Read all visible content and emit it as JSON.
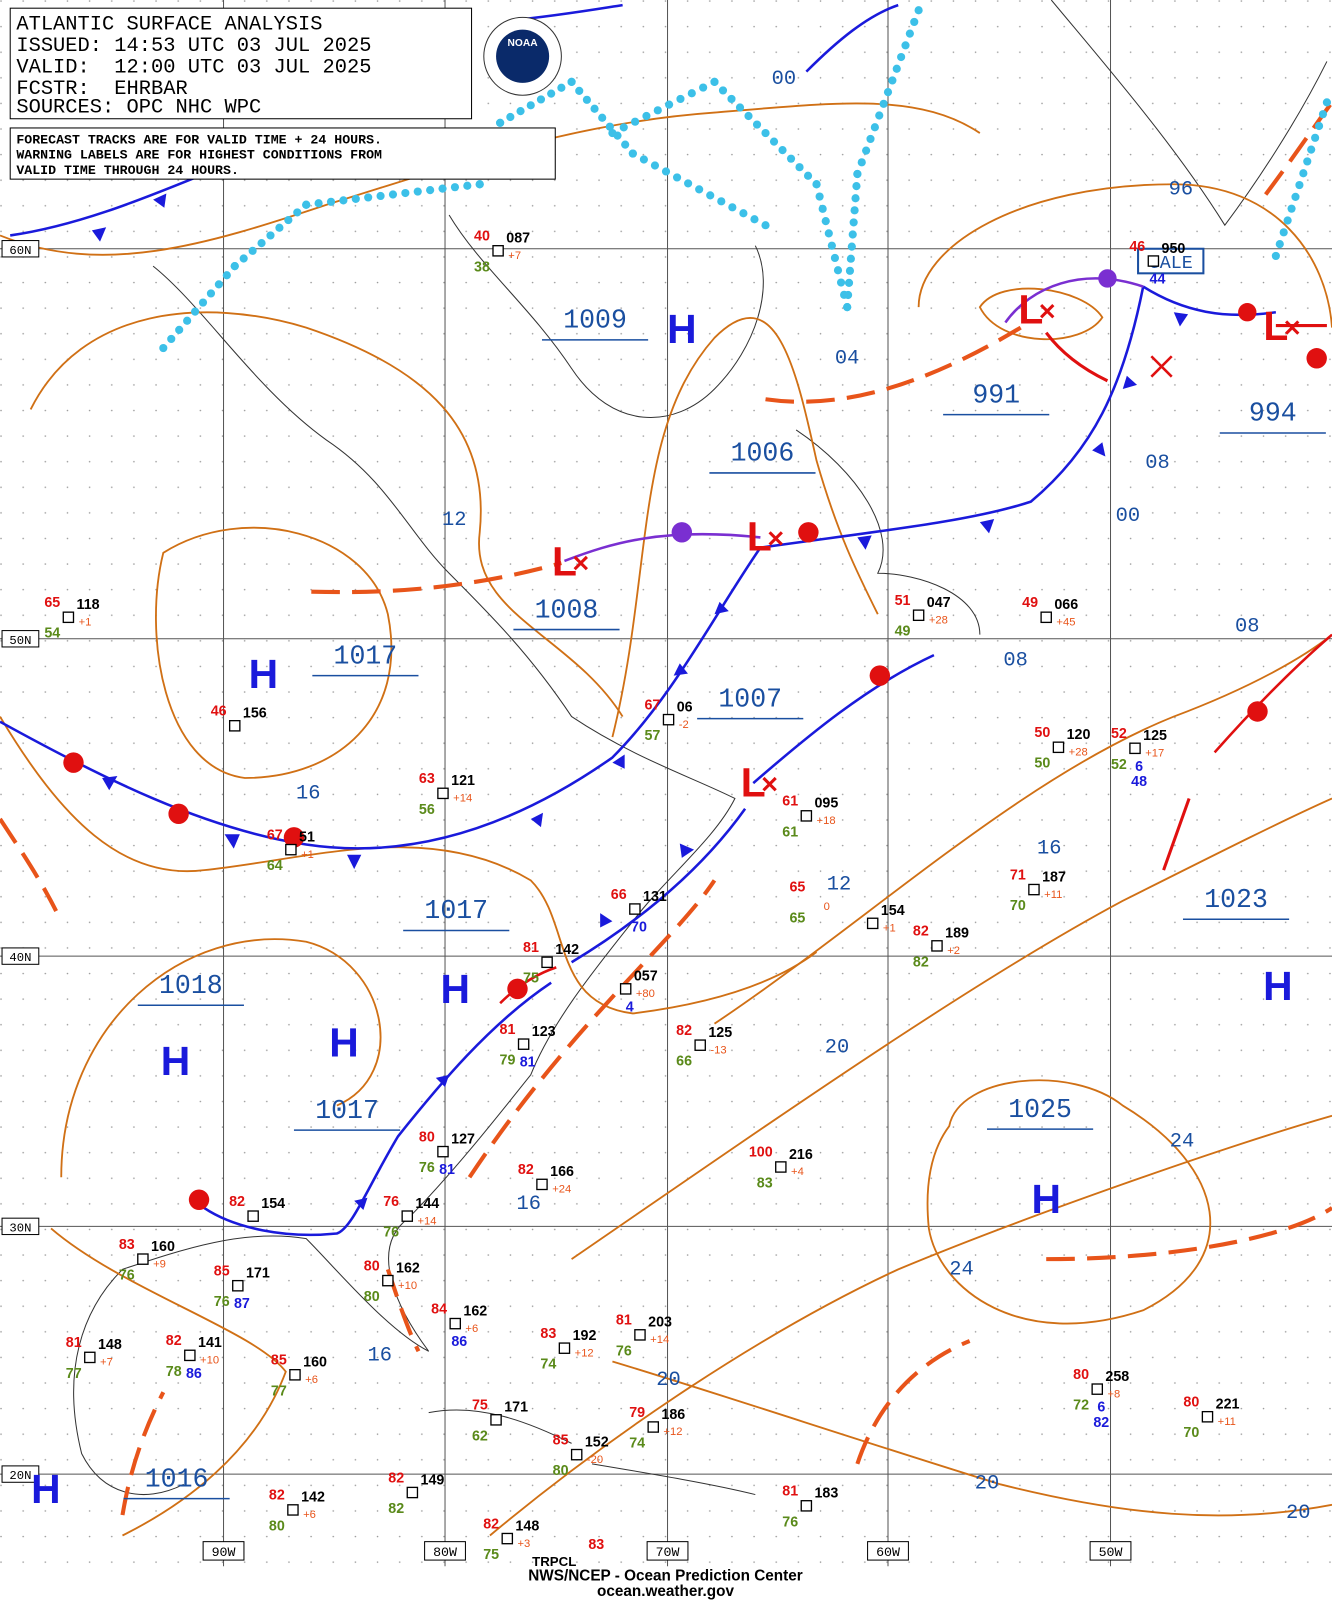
{
  "header": {
    "title": "ATLANTIC SURFACE ANALYSIS",
    "issued": "ISSUED: 14:53 UTC 03 JUL 2025",
    "valid": "VALID:  12:00 UTC 03 JUL 2025",
    "fcstr": "FCSTR:  EHRBAR",
    "sources": "SOURCES: OPC NHC WPC",
    "notes": [
      "FORECAST TRACKS ARE FOR VALID TIME + 24 HOURS.",
      "WARNING LABELS ARE FOR HIGHEST CONDITIONS FROM",
      "VALID TIME THROUGH 24 HOURS."
    ]
  },
  "logo": "NOAA",
  "footer": [
    "NWS/NCEP - Ocean Prediction Center",
    "ocean.weather.gov"
  ],
  "region_label": "TRPCL",
  "lat_labels": [
    "60N",
    "50N",
    "40N",
    "30N",
    "20N"
  ],
  "lon_labels": [
    "90W",
    "80W",
    "70W",
    "60W",
    "50W"
  ],
  "pressure_labels": [
    "1009",
    "1006",
    "1008",
    "1017",
    "1007",
    "1017",
    "1018",
    "1017",
    "1016",
    "991",
    "994",
    "1023",
    "1025"
  ],
  "highs": [
    "H",
    "H",
    "H",
    "H",
    "H",
    "H",
    "H",
    "H"
  ],
  "lows": [
    "L",
    "L",
    "L",
    "L",
    "L"
  ],
  "warning": "GALE",
  "isobar_labels": [
    "00",
    "04",
    "12",
    "16",
    "08",
    "00",
    "96",
    "08",
    "08",
    "16",
    "12",
    "20",
    "24",
    "16",
    "24",
    "16",
    "20",
    "20",
    "20"
  ],
  "stations": [
    {
      "t": "40",
      "p": "087",
      "d": "38",
      "c": "+7"
    },
    {
      "t": "65",
      "p": "118",
      "d": "54",
      "c": "+1"
    },
    {
      "t": "46",
      "p": "156"
    },
    {
      "t": "67",
      "p": "51",
      "d": "64",
      "c": "+1"
    },
    {
      "t": "63",
      "p": "121",
      "d": "56",
      "c": "+14"
    },
    {
      "t": "67",
      "p": "06",
      "d": "57",
      "c": "-2"
    },
    {
      "t": "51",
      "p": "047",
      "d": "49",
      "c": "+28"
    },
    {
      "t": "49",
      "p": "066",
      "c": "+45"
    },
    {
      "t": "61",
      "p": "095",
      "d": "61",
      "c": "+18"
    },
    {
      "t": "50",
      "p": "120",
      "d": "50",
      "c": "+28"
    },
    {
      "t": "52",
      "p": "125",
      "d": "52",
      "c": "+17",
      "x": [
        "6",
        "48"
      ]
    },
    {
      "t": "66",
      "p": "131",
      "x": [
        "70"
      ]
    },
    {
      "t": "81",
      "p": "142",
      "d": "75"
    },
    {
      "p": "057",
      "c": "+80",
      "x": [
        "4"
      ]
    },
    {
      "t": "81",
      "p": "123",
      "d": "79",
      "x": [
        "81"
      ]
    },
    {
      "t": "65",
      "d": "65",
      "c": "0"
    },
    {
      "p": "154",
      "c": "+1"
    },
    {
      "t": "82",
      "p": "189",
      "d": "82",
      "c": "+2"
    },
    {
      "t": "71",
      "p": "187",
      "d": "70",
      "c": "+11"
    },
    {
      "t": "82",
      "p": "125",
      "d": "66",
      "c": "-13"
    },
    {
      "t": "80",
      "p": "127",
      "d": "76",
      "x": [
        "81"
      ]
    },
    {
      "t": "82",
      "p": "166",
      "c": "+24"
    },
    {
      "t": "100",
      "p": "216",
      "d": "83",
      "c": "+4"
    },
    {
      "t": "76",
      "p": "144",
      "d": "76",
      "c": "+14"
    },
    {
      "t": "82",
      "p": "154"
    },
    {
      "t": "83",
      "p": "160",
      "d": "76",
      "c": "+9"
    },
    {
      "t": "85",
      "p": "171",
      "d": "76",
      "x": [
        "87"
      ]
    },
    {
      "t": "80",
      "p": "162",
      "d": "80",
      "c": "+10"
    },
    {
      "t": "84",
      "p": "162",
      "c": "+6",
      "x": [
        "86"
      ]
    },
    {
      "t": "81",
      "p": "148",
      "d": "77",
      "c": "+7"
    },
    {
      "t": "82",
      "p": "141",
      "d": "78",
      "c": "+10",
      "x": [
        "86"
      ]
    },
    {
      "t": "85",
      "p": "160",
      "d": "77",
      "c": "+6"
    },
    {
      "t": "83",
      "p": "192",
      "d": "74",
      "c": "+12"
    },
    {
      "t": "81",
      "p": "203",
      "d": "76",
      "c": "+14"
    },
    {
      "t": "75",
      "p": "171",
      "d": "62"
    },
    {
      "t": "79",
      "p": "186",
      "d": "74",
      "c": "+12"
    },
    {
      "t": "85",
      "p": "152",
      "d": "80",
      "c": "-20"
    },
    {
      "t": "80",
      "p": "258",
      "d": "72",
      "c": "+8",
      "x": [
        "6",
        "82"
      ]
    },
    {
      "t": "80",
      "p": "221",
      "d": "70",
      "c": "+11"
    },
    {
      "t": "82",
      "p": "142",
      "d": "80",
      "c": "+6"
    },
    {
      "t": "82",
      "p": "149",
      "d": "82"
    },
    {
      "t": "82",
      "p": "148",
      "d": "75",
      "c": "+3"
    },
    {
      "t": "81",
      "p": "183",
      "d": "76"
    },
    {
      "t": "46",
      "p": "950",
      "x": [
        "44"
      ]
    },
    {
      "t": "83"
    }
  ]
}
